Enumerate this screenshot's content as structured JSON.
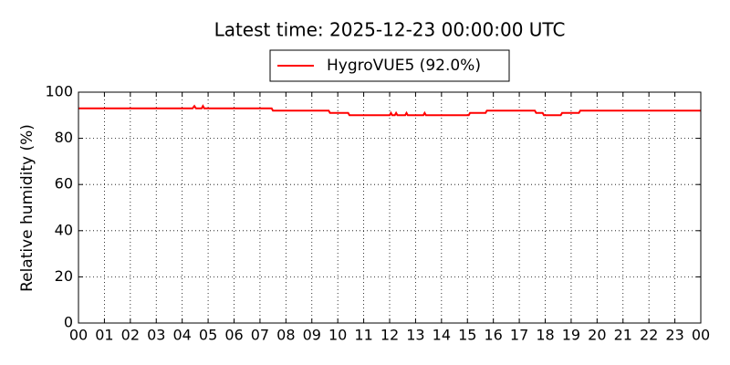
{
  "chart_data": {
    "type": "line",
    "title": "Latest time: 2025-12-23 00:00:00 UTC",
    "y_label": "Relative humidity (%)",
    "x": [
      0,
      4.4,
      4.47,
      4.53,
      4.75,
      4.8,
      4.85,
      7.45,
      7.5,
      9.65,
      9.7,
      10.4,
      10.45,
      12.0,
      12.05,
      12.1,
      12.2,
      12.25,
      12.3,
      12.6,
      12.65,
      12.7,
      13.3,
      13.35,
      13.4,
      15.05,
      15.1,
      15.7,
      15.75,
      17.6,
      17.65,
      17.9,
      17.95,
      18.6,
      18.65,
      19.3,
      19.35,
      24
    ],
    "series": [
      {
        "name": "HygroVUE5 (92.0%)",
        "color": "#ff0000",
        "values": [
          93,
          93,
          94,
          93,
          93,
          94,
          93,
          93,
          92,
          92,
          91,
          91,
          90,
          90,
          91,
          90,
          90,
          91,
          90,
          90,
          91,
          90,
          90,
          91,
          90,
          90,
          91,
          91,
          92,
          92,
          91,
          91,
          90,
          90,
          91,
          91,
          92,
          92
        ]
      }
    ],
    "xlim": [
      0,
      24
    ],
    "xticks": [
      {
        "value": 0,
        "label": "00"
      },
      {
        "value": 1,
        "label": "01"
      },
      {
        "value": 2,
        "label": "02"
      },
      {
        "value": 3,
        "label": "03"
      },
      {
        "value": 4,
        "label": "04"
      },
      {
        "value": 5,
        "label": "05"
      },
      {
        "value": 6,
        "label": "06"
      },
      {
        "value": 7,
        "label": "07"
      },
      {
        "value": 8,
        "label": "08"
      },
      {
        "value": 9,
        "label": "09"
      },
      {
        "value": 10,
        "label": "10"
      },
      {
        "value": 11,
        "label": "11"
      },
      {
        "value": 12,
        "label": "12"
      },
      {
        "value": 13,
        "label": "13"
      },
      {
        "value": 14,
        "label": "14"
      },
      {
        "value": 15,
        "label": "15"
      },
      {
        "value": 16,
        "label": "16"
      },
      {
        "value": 17,
        "label": "17"
      },
      {
        "value": 18,
        "label": "18"
      },
      {
        "value": 19,
        "label": "19"
      },
      {
        "value": 20,
        "label": "20"
      },
      {
        "value": 21,
        "label": "21"
      },
      {
        "value": 22,
        "label": "22"
      },
      {
        "value": 23,
        "label": "23"
      },
      {
        "value": 24,
        "label": "00"
      }
    ],
    "ylim": [
      0,
      100
    ],
    "yticks": [
      0,
      20,
      40,
      60,
      80,
      100
    ],
    "grid": true,
    "legend": "top"
  }
}
